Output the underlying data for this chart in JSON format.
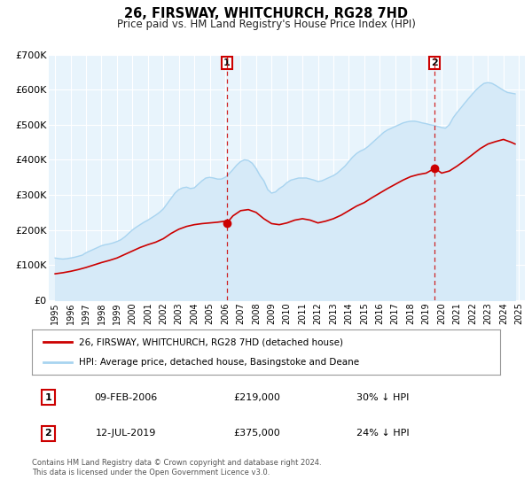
{
  "title": "26, FIRSWAY, WHITCHURCH, RG28 7HD",
  "subtitle": "Price paid vs. HM Land Registry's House Price Index (HPI)",
  "hpi_label": "HPI: Average price, detached house, Basingstoke and Deane",
  "property_label": "26, FIRSWAY, WHITCHURCH, RG28 7HD (detached house)",
  "hpi_color": "#a8d4f0",
  "hpi_fill_color": "#d6eaf8",
  "property_color": "#cc0000",
  "plot_bg_color": "#e8f4fc",
  "grid_color": "#ffffff",
  "annotation1": {
    "label": "1",
    "date": "09-FEB-2006",
    "x_year": 2006.1,
    "price": 219000,
    "hpi_pct": "30% ↓ HPI"
  },
  "annotation2": {
    "label": "2",
    "date": "12-JUL-2019",
    "x_year": 2019.53,
    "price": 375000,
    "hpi_pct": "24% ↓ HPI"
  },
  "ylim": [
    0,
    700000
  ],
  "xlim_start": 1994.6,
  "xlim_end": 2025.4,
  "yticks": [
    0,
    100000,
    200000,
    300000,
    400000,
    500000,
    600000,
    700000
  ],
  "ytick_labels": [
    "£0",
    "£100K",
    "£200K",
    "£300K",
    "£400K",
    "£500K",
    "£600K",
    "£700K"
  ],
  "xticks": [
    1995,
    1996,
    1997,
    1998,
    1999,
    2000,
    2001,
    2002,
    2003,
    2004,
    2005,
    2006,
    2007,
    2008,
    2009,
    2010,
    2011,
    2012,
    2013,
    2014,
    2015,
    2016,
    2017,
    2018,
    2019,
    2020,
    2021,
    2022,
    2023,
    2024,
    2025
  ],
  "footer1": "Contains HM Land Registry data © Crown copyright and database right 2024.",
  "footer2": "This data is licensed under the Open Government Licence v3.0.",
  "hpi_data": [
    [
      1995.0,
      120000
    ],
    [
      1995.25,
      118000
    ],
    [
      1995.5,
      117000
    ],
    [
      1995.75,
      118000
    ],
    [
      1996.0,
      120000
    ],
    [
      1996.25,
      122000
    ],
    [
      1996.5,
      125000
    ],
    [
      1996.75,
      128000
    ],
    [
      1997.0,
      135000
    ],
    [
      1997.25,
      140000
    ],
    [
      1997.5,
      145000
    ],
    [
      1997.75,
      150000
    ],
    [
      1998.0,
      155000
    ],
    [
      1998.25,
      158000
    ],
    [
      1998.5,
      160000
    ],
    [
      1998.75,
      163000
    ],
    [
      1999.0,
      167000
    ],
    [
      1999.25,
      172000
    ],
    [
      1999.5,
      180000
    ],
    [
      1999.75,
      190000
    ],
    [
      2000.0,
      200000
    ],
    [
      2000.25,
      208000
    ],
    [
      2000.5,
      215000
    ],
    [
      2000.75,
      222000
    ],
    [
      2001.0,
      228000
    ],
    [
      2001.25,
      235000
    ],
    [
      2001.5,
      242000
    ],
    [
      2001.75,
      250000
    ],
    [
      2002.0,
      260000
    ],
    [
      2002.25,
      275000
    ],
    [
      2002.5,
      290000
    ],
    [
      2002.75,
      305000
    ],
    [
      2003.0,
      315000
    ],
    [
      2003.25,
      320000
    ],
    [
      2003.5,
      322000
    ],
    [
      2003.75,
      318000
    ],
    [
      2004.0,
      320000
    ],
    [
      2004.25,
      330000
    ],
    [
      2004.5,
      340000
    ],
    [
      2004.75,
      348000
    ],
    [
      2005.0,
      350000
    ],
    [
      2005.25,
      348000
    ],
    [
      2005.5,
      345000
    ],
    [
      2005.75,
      345000
    ],
    [
      2006.0,
      350000
    ],
    [
      2006.25,
      360000
    ],
    [
      2006.5,
      372000
    ],
    [
      2006.75,
      385000
    ],
    [
      2007.0,
      395000
    ],
    [
      2007.25,
      400000
    ],
    [
      2007.5,
      398000
    ],
    [
      2007.75,
      390000
    ],
    [
      2008.0,
      375000
    ],
    [
      2008.25,
      355000
    ],
    [
      2008.5,
      340000
    ],
    [
      2008.75,
      315000
    ],
    [
      2009.0,
      305000
    ],
    [
      2009.25,
      308000
    ],
    [
      2009.5,
      318000
    ],
    [
      2009.75,
      325000
    ],
    [
      2010.0,
      335000
    ],
    [
      2010.25,
      342000
    ],
    [
      2010.5,
      345000
    ],
    [
      2010.75,
      348000
    ],
    [
      2011.0,
      348000
    ],
    [
      2011.25,
      348000
    ],
    [
      2011.5,
      345000
    ],
    [
      2011.75,
      342000
    ],
    [
      2012.0,
      338000
    ],
    [
      2012.25,
      340000
    ],
    [
      2012.5,
      345000
    ],
    [
      2012.75,
      350000
    ],
    [
      2013.0,
      355000
    ],
    [
      2013.25,
      362000
    ],
    [
      2013.5,
      372000
    ],
    [
      2013.75,
      382000
    ],
    [
      2014.0,
      395000
    ],
    [
      2014.25,
      408000
    ],
    [
      2014.5,
      418000
    ],
    [
      2014.75,
      425000
    ],
    [
      2015.0,
      430000
    ],
    [
      2015.25,
      438000
    ],
    [
      2015.5,
      448000
    ],
    [
      2015.75,
      458000
    ],
    [
      2016.0,
      468000
    ],
    [
      2016.25,
      478000
    ],
    [
      2016.5,
      485000
    ],
    [
      2016.75,
      490000
    ],
    [
      2017.0,
      495000
    ],
    [
      2017.25,
      500000
    ],
    [
      2017.5,
      505000
    ],
    [
      2017.75,
      508000
    ],
    [
      2018.0,
      510000
    ],
    [
      2018.25,
      510000
    ],
    [
      2018.5,
      508000
    ],
    [
      2018.75,
      505000
    ],
    [
      2019.0,
      503000
    ],
    [
      2019.25,
      500000
    ],
    [
      2019.5,
      498000
    ],
    [
      2019.75,
      495000
    ],
    [
      2020.0,
      492000
    ],
    [
      2020.25,
      490000
    ],
    [
      2020.5,
      500000
    ],
    [
      2020.75,
      520000
    ],
    [
      2021.0,
      535000
    ],
    [
      2021.25,
      548000
    ],
    [
      2021.5,
      562000
    ],
    [
      2021.75,
      575000
    ],
    [
      2022.0,
      588000
    ],
    [
      2022.25,
      600000
    ],
    [
      2022.5,
      610000
    ],
    [
      2022.75,
      618000
    ],
    [
      2023.0,
      620000
    ],
    [
      2023.25,
      618000
    ],
    [
      2023.5,
      612000
    ],
    [
      2023.75,
      605000
    ],
    [
      2024.0,
      598000
    ],
    [
      2024.25,
      592000
    ],
    [
      2024.5,
      590000
    ],
    [
      2024.75,
      588000
    ]
  ],
  "property_data": [
    [
      1995.0,
      75000
    ],
    [
      1995.5,
      78000
    ],
    [
      1996.0,
      82000
    ],
    [
      1996.5,
      87000
    ],
    [
      1997.0,
      93000
    ],
    [
      1997.5,
      100000
    ],
    [
      1998.0,
      107000
    ],
    [
      1998.5,
      113000
    ],
    [
      1999.0,
      120000
    ],
    [
      1999.5,
      130000
    ],
    [
      2000.0,
      140000
    ],
    [
      2000.5,
      150000
    ],
    [
      2001.0,
      158000
    ],
    [
      2001.5,
      165000
    ],
    [
      2002.0,
      175000
    ],
    [
      2002.5,
      190000
    ],
    [
      2003.0,
      202000
    ],
    [
      2003.5,
      210000
    ],
    [
      2004.0,
      215000
    ],
    [
      2004.5,
      218000
    ],
    [
      2005.0,
      220000
    ],
    [
      2005.5,
      222000
    ],
    [
      2006.0,
      225000
    ],
    [
      2006.1,
      219000
    ],
    [
      2006.5,
      240000
    ],
    [
      2007.0,
      255000
    ],
    [
      2007.5,
      258000
    ],
    [
      2008.0,
      250000
    ],
    [
      2008.5,
      232000
    ],
    [
      2009.0,
      218000
    ],
    [
      2009.5,
      215000
    ],
    [
      2010.0,
      220000
    ],
    [
      2010.5,
      228000
    ],
    [
      2011.0,
      232000
    ],
    [
      2011.5,
      228000
    ],
    [
      2012.0,
      220000
    ],
    [
      2012.5,
      225000
    ],
    [
      2013.0,
      232000
    ],
    [
      2013.5,
      242000
    ],
    [
      2014.0,
      255000
    ],
    [
      2014.5,
      268000
    ],
    [
      2015.0,
      278000
    ],
    [
      2015.5,
      292000
    ],
    [
      2016.0,
      305000
    ],
    [
      2016.5,
      318000
    ],
    [
      2017.0,
      330000
    ],
    [
      2017.5,
      342000
    ],
    [
      2018.0,
      352000
    ],
    [
      2018.5,
      358000
    ],
    [
      2019.0,
      362000
    ],
    [
      2019.53,
      375000
    ],
    [
      2019.75,
      370000
    ],
    [
      2020.0,
      362000
    ],
    [
      2020.5,
      368000
    ],
    [
      2021.0,
      382000
    ],
    [
      2021.5,
      398000
    ],
    [
      2022.0,
      415000
    ],
    [
      2022.5,
      432000
    ],
    [
      2023.0,
      445000
    ],
    [
      2023.5,
      452000
    ],
    [
      2024.0,
      458000
    ],
    [
      2024.5,
      450000
    ],
    [
      2024.75,
      445000
    ]
  ]
}
